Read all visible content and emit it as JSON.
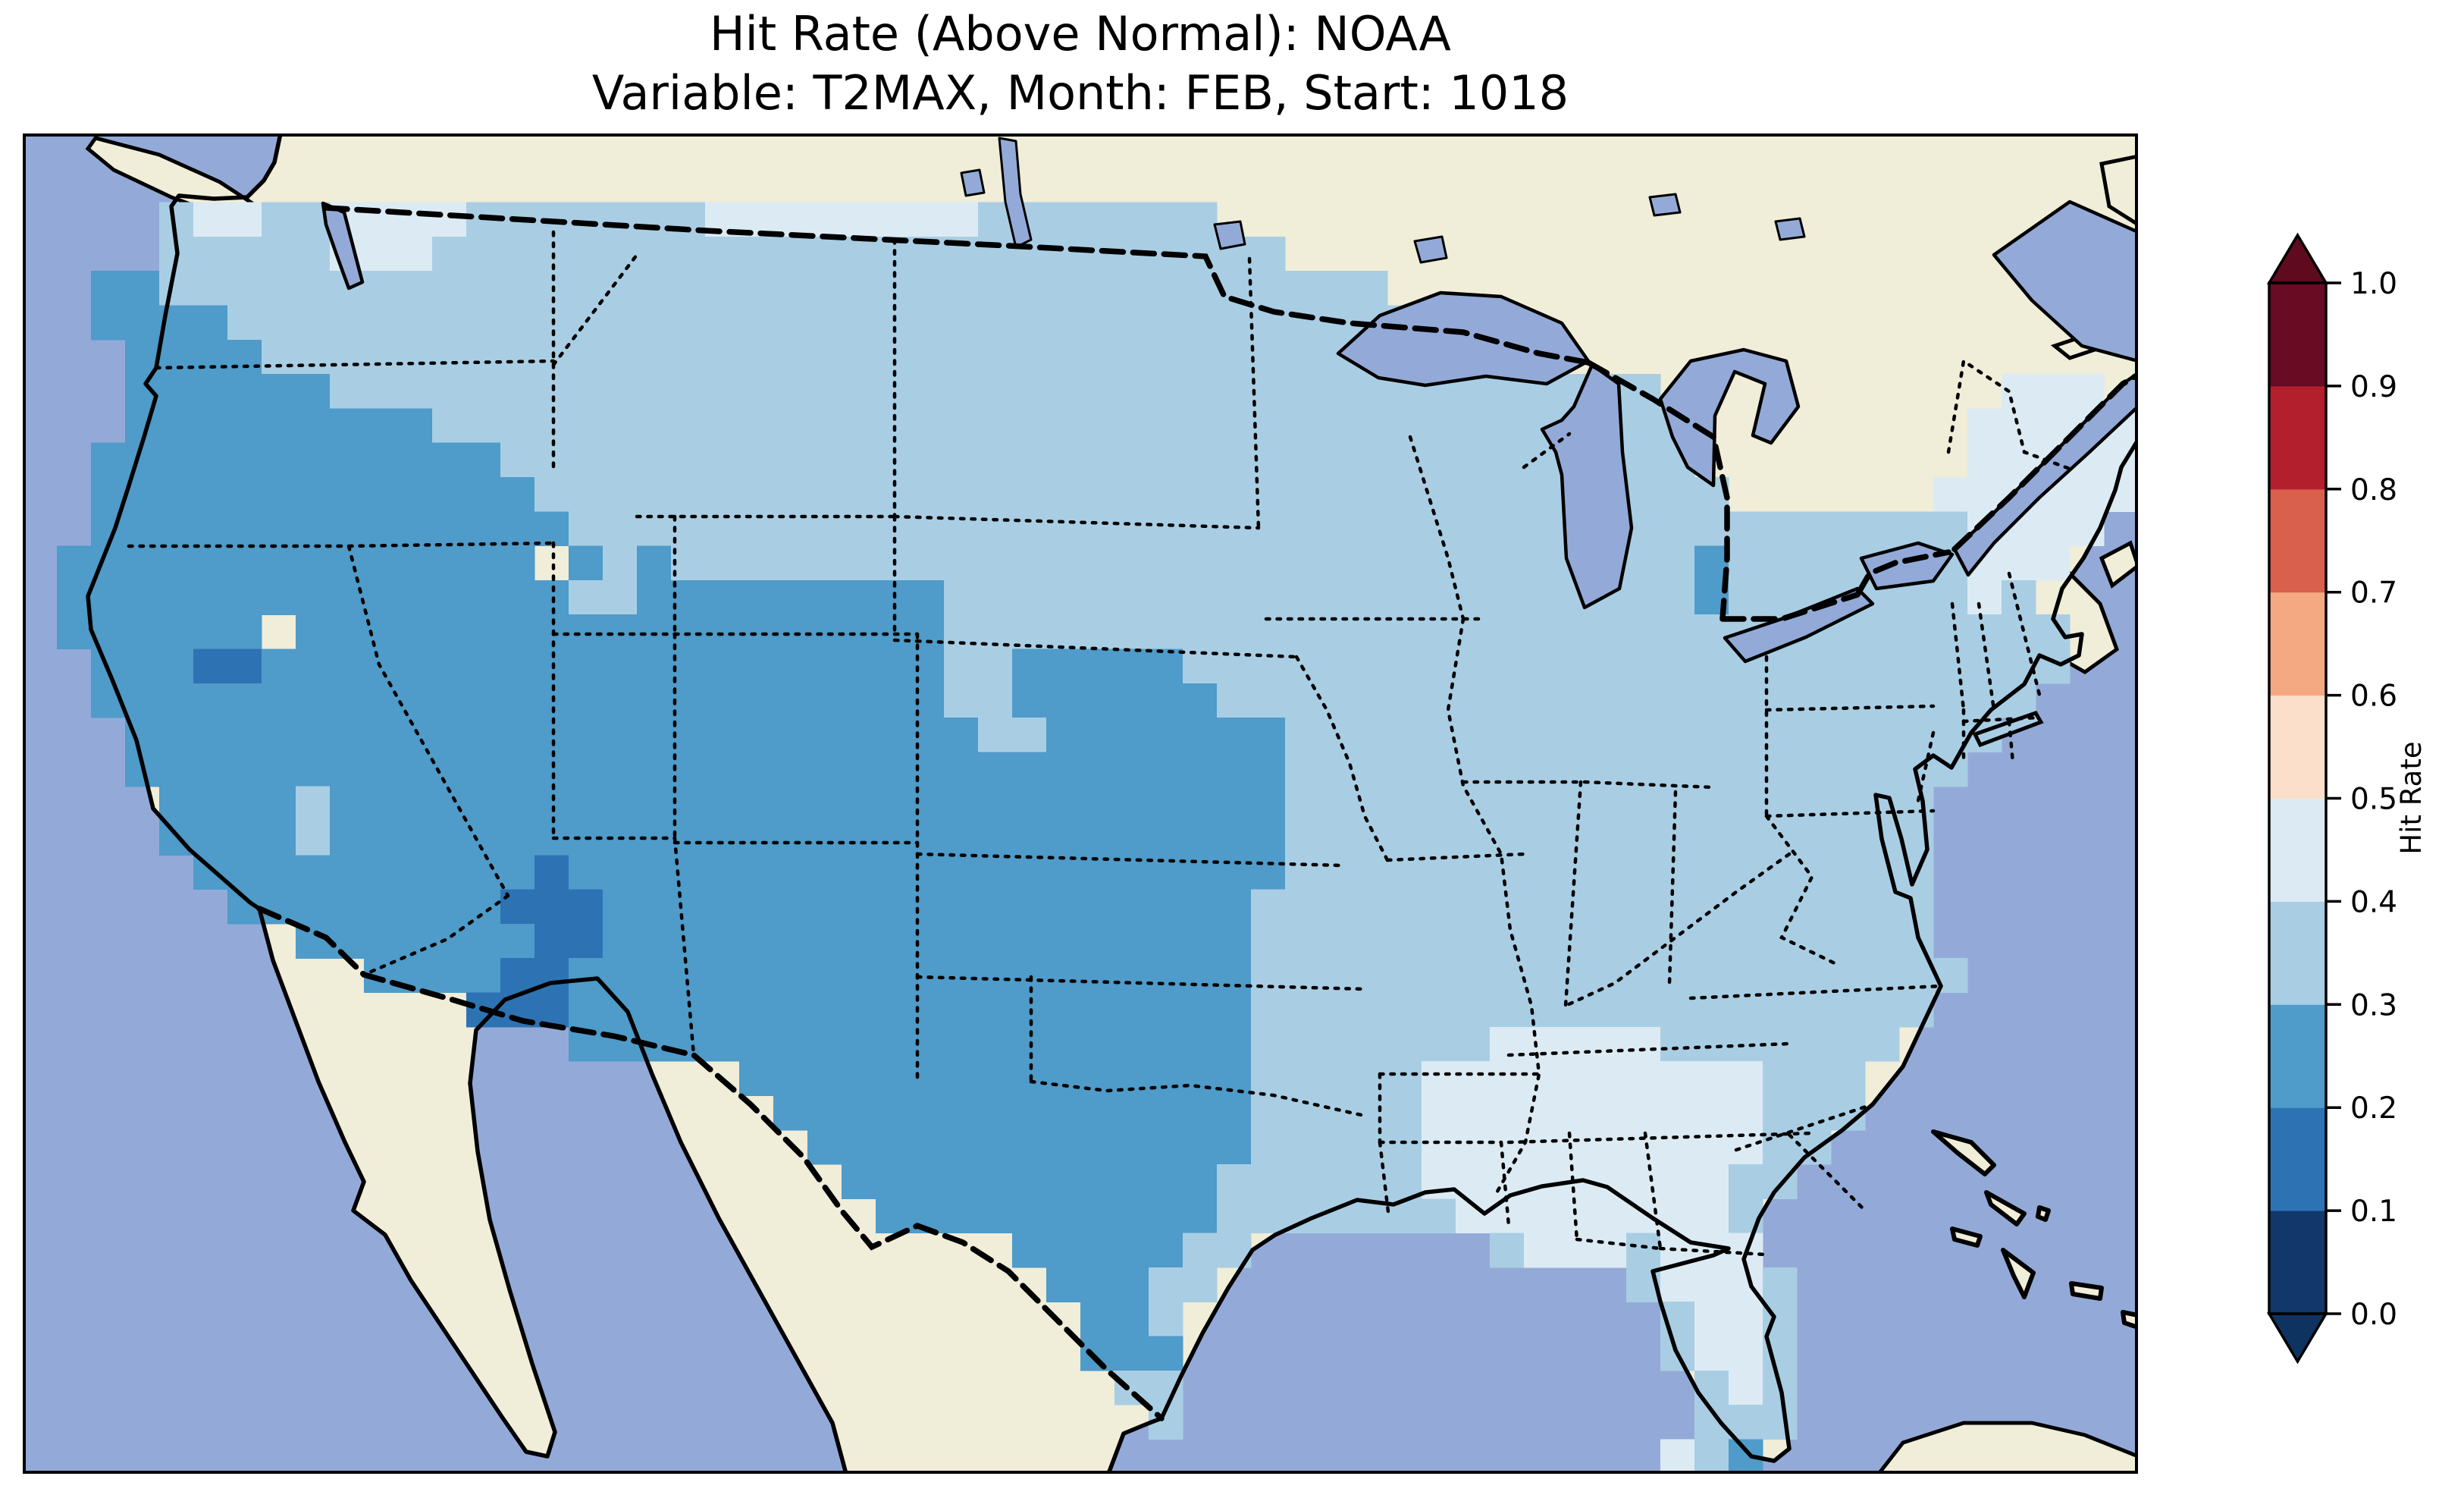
{
  "title": {
    "line1": "Hit Rate (Above Normal): NOAA",
    "line2": "Variable: T2MAX, Month: FEB, Start: 1018"
  },
  "colorbar": {
    "label": "Hit Rate",
    "ticks": [
      "0.0",
      "0.1",
      "0.2",
      "0.3",
      "0.4",
      "0.5",
      "0.6",
      "0.7",
      "0.8",
      "0.9",
      "1.0"
    ],
    "segments_bottom_to_top": [
      {
        "range": "0.0-0.1",
        "color": "#12386b"
      },
      {
        "range": "0.1-0.2",
        "color": "#2d73b4"
      },
      {
        "range": "0.2-0.3",
        "color": "#4f9bc9"
      },
      {
        "range": "0.3-0.4",
        "color": "#a9cee4"
      },
      {
        "range": "0.4-0.5",
        "color": "#dcebf3"
      },
      {
        "range": "0.5-0.6",
        "color": "#fbdfca"
      },
      {
        "range": "0.6-0.7",
        "color": "#f5a983"
      },
      {
        "range": "0.7-0.8",
        "color": "#d8604c"
      },
      {
        "range": "0.8-0.9",
        "color": "#b41f2e"
      },
      {
        "range": "0.9-1.0",
        "color": "#690b22"
      }
    ],
    "extend_over_color": "#5f0a1f",
    "extend_under_color": "#0f3360"
  },
  "map_colors": {
    "ocean": "#93aad8",
    "land_other_countries": "#f0edd8",
    "coastline": "#000000",
    "state_border": "#000000",
    "country_border": "#000000"
  },
  "chart_data": {
    "type": "heatmap",
    "metric": "Hit Rate (Above Normal)",
    "source": "NOAA",
    "variable": "T2MAX",
    "month": "FEB",
    "start": "1018",
    "region": "Contiguous United States",
    "colorbar_range": [
      0.0,
      1.0
    ],
    "bin_values": {
      "1": [
        0.1,
        0.2
      ],
      "2": [
        0.2,
        0.3
      ],
      "3": [
        0.3,
        0.4
      ],
      "4": [
        0.4,
        0.5
      ]
    },
    "bin_colors": {
      "1": "#2d73b4",
      "2": "#4f9bc9",
      "3": "#a9cee4",
      "4": "#dcebf3"
    },
    "grid": {
      "cols": 62,
      "rows": 39,
      "cell_w": 45.0,
      "cell_h": 45.3,
      "rows_runs": [
        [],
        [],
        [
          [
            4,
            4,
            3
          ],
          [
            5,
            6,
            4
          ],
          [
            7,
            8,
            3
          ],
          [
            9,
            12,
            4
          ],
          [
            13,
            19,
            3
          ],
          [
            20,
            27,
            4
          ],
          [
            28,
            34,
            3
          ]
        ],
        [
          [
            4,
            8,
            3
          ],
          [
            9,
            11,
            4
          ],
          [
            12,
            36,
            3
          ]
        ],
        [
          [
            2,
            3,
            2
          ],
          [
            4,
            39,
            3
          ]
        ],
        [
          [
            2,
            5,
            2
          ],
          [
            6,
            40,
            3
          ]
        ],
        [
          [
            3,
            6,
            2
          ],
          [
            7,
            40,
            3
          ]
        ],
        [
          [
            3,
            8,
            2
          ],
          [
            9,
            47,
            3
          ],
          [
            58,
            60,
            4
          ]
        ],
        [
          [
            3,
            11,
            2
          ],
          [
            12,
            48,
            3
          ],
          [
            57,
            61,
            4
          ]
        ],
        [
          [
            2,
            13,
            2
          ],
          [
            14,
            48,
            3
          ],
          [
            57,
            61,
            4
          ]
        ],
        [
          [
            2,
            14,
            2
          ],
          [
            15,
            49,
            3
          ],
          [
            56,
            61,
            4
          ]
        ],
        [
          [
            2,
            15,
            2
          ],
          [
            16,
            56,
            3
          ],
          [
            57,
            60,
            4
          ]
        ],
        [
          [
            1,
            14,
            2
          ],
          [
            16,
            16,
            2
          ],
          [
            17,
            17,
            3
          ],
          [
            18,
            18,
            2
          ],
          [
            19,
            48,
            3
          ],
          [
            49,
            49,
            2
          ],
          [
            50,
            56,
            3
          ],
          [
            57,
            59,
            4
          ]
        ],
        [
          [
            1,
            15,
            2
          ],
          [
            16,
            17,
            3
          ],
          [
            18,
            26,
            2
          ],
          [
            27,
            48,
            3
          ],
          [
            49,
            49,
            2
          ],
          [
            50,
            56,
            3
          ],
          [
            57,
            57,
            4
          ],
          [
            58,
            58,
            3
          ]
        ],
        [
          [
            1,
            6,
            2
          ],
          [
            8,
            26,
            2
          ],
          [
            27,
            59,
            3
          ]
        ],
        [
          [
            2,
            4,
            2
          ],
          [
            5,
            6,
            1
          ],
          [
            7,
            26,
            2
          ],
          [
            27,
            28,
            3
          ],
          [
            29,
            33,
            2
          ],
          [
            34,
            59,
            3
          ]
        ],
        [
          [
            2,
            26,
            2
          ],
          [
            27,
            28,
            3
          ],
          [
            29,
            34,
            2
          ],
          [
            35,
            58,
            3
          ]
        ],
        [
          [
            3,
            27,
            2
          ],
          [
            28,
            29,
            3
          ],
          [
            30,
            36,
            2
          ],
          [
            37,
            57,
            3
          ]
        ],
        [
          [
            3,
            36,
            2
          ],
          [
            37,
            56,
            3
          ]
        ],
        [
          [
            4,
            7,
            2
          ],
          [
            8,
            8,
            3
          ],
          [
            9,
            36,
            2
          ],
          [
            37,
            55,
            3
          ]
        ],
        [
          [
            4,
            7,
            2
          ],
          [
            8,
            8,
            3
          ],
          [
            9,
            36,
            2
          ],
          [
            37,
            55,
            3
          ]
        ],
        [
          [
            5,
            14,
            2
          ],
          [
            15,
            15,
            1
          ],
          [
            16,
            36,
            2
          ],
          [
            37,
            55,
            3
          ]
        ],
        [
          [
            6,
            13,
            2
          ],
          [
            14,
            16,
            1
          ],
          [
            17,
            35,
            2
          ],
          [
            36,
            55,
            3
          ]
        ],
        [
          [
            8,
            14,
            2
          ],
          [
            15,
            16,
            1
          ],
          [
            17,
            35,
            2
          ],
          [
            36,
            55,
            3
          ]
        ],
        [
          [
            10,
            13,
            2
          ],
          [
            14,
            15,
            1
          ],
          [
            16,
            35,
            2
          ],
          [
            36,
            56,
            3
          ]
        ],
        [
          [
            13,
            15,
            1
          ],
          [
            16,
            35,
            2
          ],
          [
            36,
            55,
            3
          ]
        ],
        [
          [
            16,
            35,
            2
          ],
          [
            36,
            42,
            3
          ],
          [
            43,
            47,
            4
          ],
          [
            48,
            54,
            3
          ]
        ],
        [
          [
            21,
            35,
            2
          ],
          [
            36,
            40,
            3
          ],
          [
            41,
            50,
            4
          ],
          [
            51,
            53,
            3
          ]
        ],
        [
          [
            22,
            35,
            2
          ],
          [
            36,
            40,
            3
          ],
          [
            41,
            50,
            4
          ],
          [
            51,
            53,
            3
          ]
        ],
        [
          [
            23,
            35,
            2
          ],
          [
            36,
            40,
            3
          ],
          [
            41,
            50,
            4
          ],
          [
            51,
            52,
            3
          ]
        ],
        [
          [
            24,
            34,
            2
          ],
          [
            35,
            40,
            3
          ],
          [
            41,
            49,
            4
          ],
          [
            50,
            51,
            3
          ]
        ],
        [
          [
            25,
            34,
            2
          ],
          [
            35,
            41,
            3
          ],
          [
            42,
            49,
            4
          ],
          [
            50,
            50,
            3
          ]
        ],
        [
          [
            29,
            33,
            2
          ],
          [
            34,
            35,
            3
          ],
          [
            43,
            43,
            3
          ],
          [
            44,
            46,
            4
          ],
          [
            47,
            47,
            3
          ],
          [
            48,
            50,
            4
          ]
        ],
        [
          [
            30,
            32,
            2
          ],
          [
            33,
            34,
            3
          ],
          [
            47,
            47,
            3
          ],
          [
            48,
            50,
            4
          ],
          [
            51,
            51,
            3
          ]
        ],
        [
          [
            31,
            32,
            2
          ],
          [
            33,
            33,
            3
          ],
          [
            48,
            48,
            3
          ],
          [
            49,
            50,
            4
          ],
          [
            51,
            51,
            3
          ]
        ],
        [
          [
            31,
            33,
            2
          ],
          [
            48,
            48,
            3
          ],
          [
            49,
            50,
            4
          ],
          [
            51,
            51,
            3
          ]
        ],
        [
          [
            32,
            33,
            3
          ],
          [
            49,
            49,
            3
          ],
          [
            50,
            50,
            4
          ],
          [
            51,
            51,
            3
          ]
        ],
        [
          [
            33,
            33,
            3
          ],
          [
            49,
            51,
            3
          ]
        ],
        [
          [
            48,
            48,
            4
          ],
          [
            49,
            49,
            3
          ],
          [
            50,
            50,
            2
          ]
        ]
      ]
    }
  }
}
